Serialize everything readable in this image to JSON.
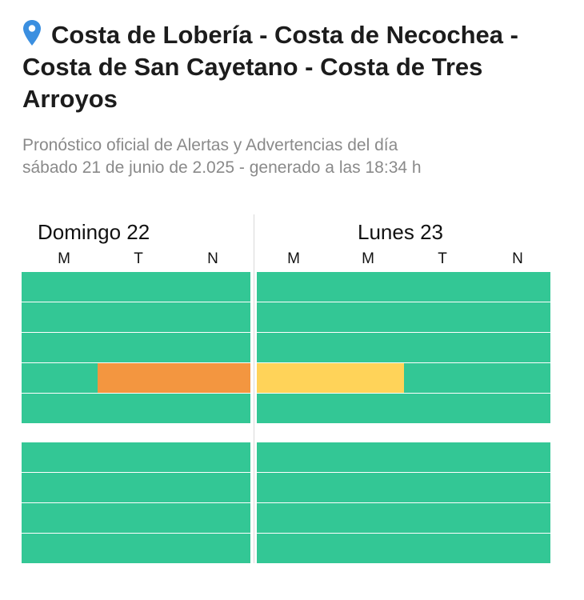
{
  "header": {
    "pin_icon": "map-pin-icon",
    "title": "Costa de Lobería - Costa de Necochea - Costa de San Cayetano - Costa de Tres Arroyos",
    "subtitle_line1": "Pronóstico oficial de Alertas y Advertencias del día",
    "subtitle_line2": "sábado 21 de junio de 2.025 - generado a las 18:34 h"
  },
  "colors": {
    "normal": "#33c795",
    "amarillo": "#ffd359",
    "naranja": "#f39640",
    "pin": "#3b8fe0"
  },
  "days": [
    {
      "label": "Domingo 22",
      "periods": [
        "M",
        "T",
        "N"
      ],
      "groups": [
        [
          [
            "normal",
            "normal",
            "normal"
          ],
          [
            "normal",
            "normal",
            "normal"
          ],
          [
            "normal",
            "normal",
            "normal"
          ],
          [
            "normal",
            "naranja",
            "naranja"
          ],
          [
            "normal",
            "normal",
            "normal"
          ]
        ],
        [
          [
            "normal",
            "normal",
            "normal"
          ],
          [
            "normal",
            "normal",
            "normal"
          ],
          [
            "normal",
            "normal",
            "normal"
          ],
          [
            "normal",
            "normal",
            "normal"
          ]
        ]
      ]
    },
    {
      "label": "Lunes 23",
      "periods": [
        "M",
        "M",
        "T",
        "N"
      ],
      "groups": [
        [
          [
            "normal",
            "normal",
            "normal",
            "normal"
          ],
          [
            "normal",
            "normal",
            "normal",
            "normal"
          ],
          [
            "normal",
            "normal",
            "normal",
            "normal"
          ],
          [
            "amarillo",
            "amarillo",
            "normal",
            "normal"
          ],
          [
            "normal",
            "normal",
            "normal",
            "normal"
          ]
        ],
        [
          [
            "normal",
            "normal",
            "normal",
            "normal"
          ],
          [
            "normal",
            "normal",
            "normal",
            "normal"
          ],
          [
            "normal",
            "normal",
            "normal",
            "normal"
          ],
          [
            "normal",
            "normal",
            "normal",
            "normal"
          ]
        ]
      ]
    }
  ]
}
